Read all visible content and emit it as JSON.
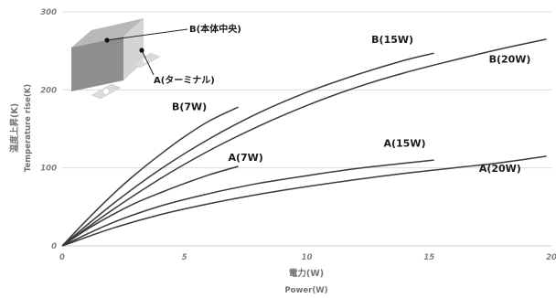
{
  "chart_data": {
    "type": "line",
    "xlabel": "電力(W)",
    "xlabel_en": "Power(W)",
    "ylabel": "温度上昇(K)",
    "ylabel_en": "Temperature rise(K)",
    "xlim": [
      0,
      20
    ],
    "ylim": [
      0,
      300
    ],
    "x_ticks": [
      0,
      5,
      10,
      15,
      20
    ],
    "y_ticks": [
      0,
      100,
      200,
      300
    ],
    "grid": "horizontal",
    "series": [
      {
        "name": "B(7W)",
        "x": [
          0,
          1,
          2,
          3,
          4,
          5,
          6,
          7.2
        ],
        "y": [
          0,
          33,
          64,
          92,
          117,
          140,
          160,
          178
        ]
      },
      {
        "name": "A(7W)",
        "x": [
          0,
          1,
          2,
          3,
          4,
          5,
          6,
          7.2
        ],
        "y": [
          0,
          21,
          39,
          55,
          68,
          80,
          91,
          102
        ]
      },
      {
        "name": "B(15W)",
        "x": [
          0,
          2,
          4,
          6,
          8,
          10,
          12,
          14,
          15.2
        ],
        "y": [
          0,
          52,
          98,
          137,
          170,
          197,
          219,
          238,
          247
        ]
      },
      {
        "name": "A(15W)",
        "x": [
          0,
          2,
          4,
          6,
          8,
          10,
          12,
          14,
          15.2
        ],
        "y": [
          0,
          29,
          51,
          67,
          80,
          90,
          99,
          106,
          110
        ]
      },
      {
        "name": "B(20W)",
        "x": [
          0,
          2,
          4,
          6,
          8,
          10,
          12,
          14,
          16,
          18,
          19.8
        ],
        "y": [
          0,
          45,
          86,
          122,
          153,
          180,
          203,
          222,
          238,
          253,
          265
        ]
      },
      {
        "name": "A(20W)",
        "x": [
          0,
          2,
          4,
          6,
          8,
          10,
          12,
          14,
          16,
          18,
          19.8
        ],
        "y": [
          0,
          22,
          40,
          54,
          66,
          76,
          85,
          93,
          100,
          107,
          115
        ]
      }
    ],
    "annotations": [
      {
        "text": "B(7W)",
        "x": 5.2,
        "y": 174
      },
      {
        "text": "A(7W)",
        "x": 7.5,
        "y": 109
      },
      {
        "text": "B(15W)",
        "x": 13.5,
        "y": 260
      },
      {
        "text": "A(15W)",
        "x": 14.0,
        "y": 127
      },
      {
        "text": "B(20W)",
        "x": 18.3,
        "y": 235
      },
      {
        "text": "A(20W)",
        "x": 17.9,
        "y": 95
      }
    ],
    "inset": {
      "label_b": "B(本体中央)",
      "label_a": "A(ターミナル)"
    }
  }
}
